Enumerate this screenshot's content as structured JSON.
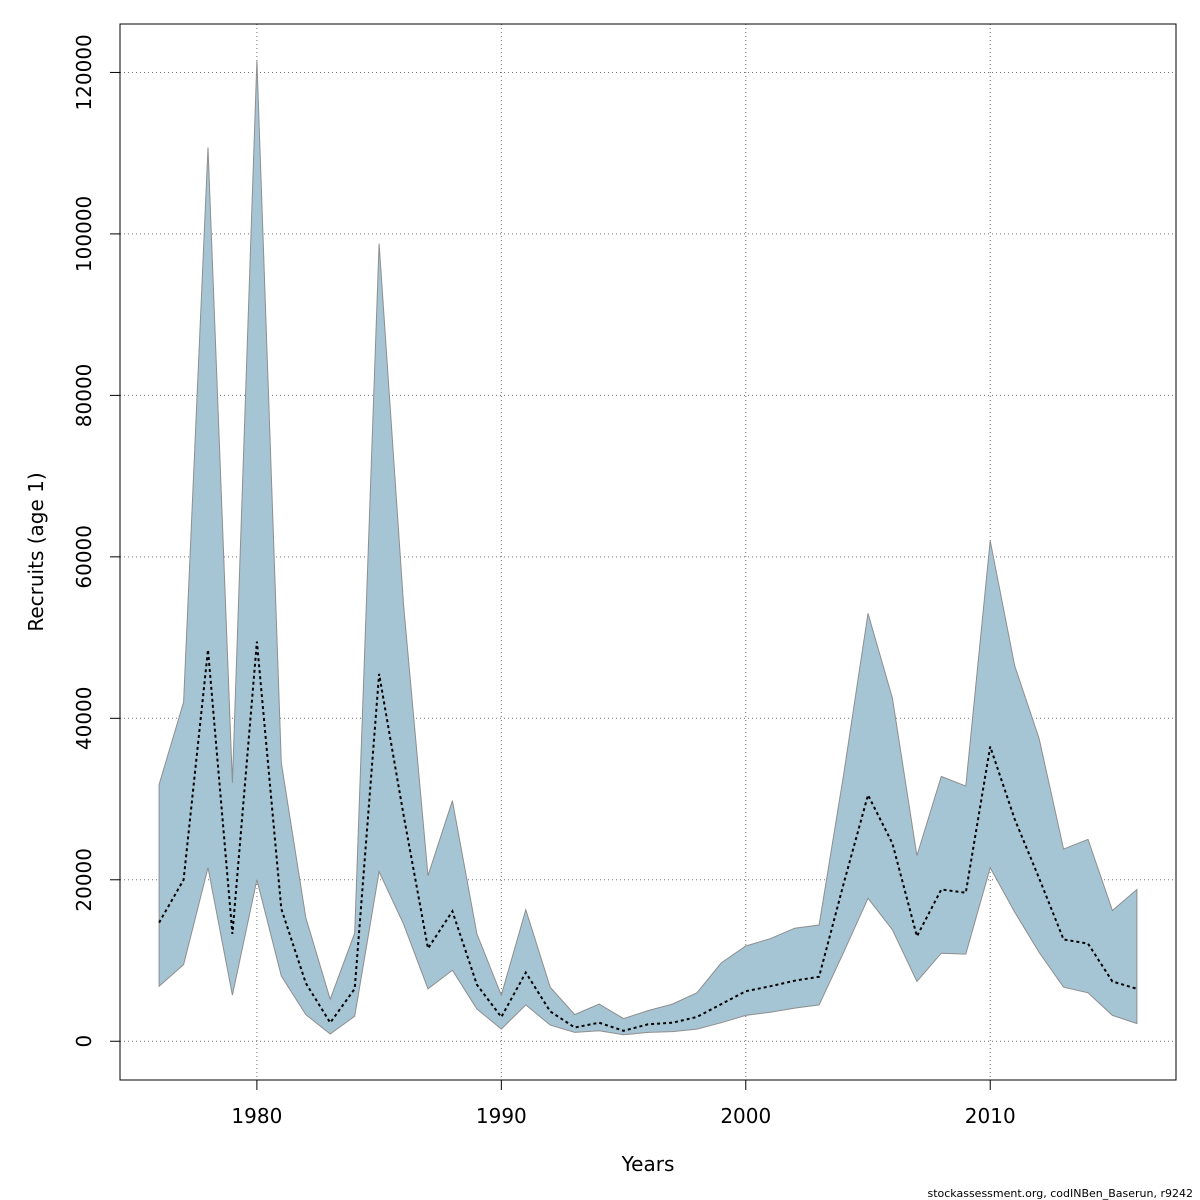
{
  "chart_data": {
    "type": "area",
    "xlabel": "Years",
    "ylabel": "Recruits (age 1)",
    "xlim": [
      1974.4,
      2017.6
    ],
    "ylim": [
      -4800,
      126000
    ],
    "x_ticks": [
      1980,
      1990,
      2000,
      2010
    ],
    "y_ticks": [
      0,
      20000,
      40000,
      60000,
      80000,
      100000,
      120000
    ],
    "grid": true,
    "colors": {
      "band_fill": "#a5c5d5",
      "band_stroke": "#8e8e8e",
      "line": "#000000",
      "grid": "#707070"
    },
    "x": [
      1976,
      1977,
      1978,
      1979,
      1980,
      1981,
      1982,
      1983,
      1984,
      1985,
      1986,
      1987,
      1988,
      1989,
      1990,
      1991,
      1992,
      1993,
      1994,
      1995,
      1996,
      1997,
      1998,
      1999,
      2000,
      2001,
      2002,
      2003,
      2004,
      2005,
      2006,
      2007,
      2008,
      2009,
      2010,
      2011,
      2012,
      2013,
      2014,
      2015,
      2016
    ],
    "series": [
      {
        "role": "estimate",
        "values": [
          14700,
          20000,
          48500,
          13300,
          49500,
          16400,
          7200,
          2300,
          6500,
          45500,
          28000,
          11500,
          16100,
          7000,
          3000,
          8500,
          3700,
          1700,
          2300,
          1300,
          2100,
          2300,
          3000,
          4600,
          6200,
          6800,
          7500,
          8000,
          19500,
          30500,
          24500,
          13000,
          18800,
          18400,
          36500,
          27500,
          20200,
          12600,
          12100,
          7400,
          6500
        ]
      },
      {
        "role": "lower",
        "values": [
          6800,
          9500,
          21500,
          5700,
          20000,
          8100,
          3300,
          900,
          3100,
          21000,
          14500,
          6500,
          8800,
          4000,
          1500,
          4500,
          2000,
          1100,
          1300,
          800,
          1100,
          1200,
          1500,
          2300,
          3200,
          3600,
          4100,
          4500,
          11000,
          17700,
          13800,
          7400,
          10900,
          10800,
          21500,
          16000,
          11000,
          6700,
          6000,
          3200,
          2200
        ]
      },
      {
        "role": "upper",
        "values": [
          31800,
          42000,
          110700,
          32000,
          121500,
          34500,
          15300,
          5200,
          13400,
          98800,
          54000,
          20500,
          29800,
          13300,
          5700,
          16300,
          6700,
          3300,
          4600,
          2800,
          3800,
          4600,
          6000,
          9700,
          11800,
          12700,
          14000,
          14400,
          33000,
          53000,
          42500,
          23000,
          32800,
          31600,
          62000,
          46500,
          37500,
          23800,
          25000,
          16200,
          18800
        ]
      }
    ]
  },
  "footer": {
    "credit": "stockassessment.org, codINBen_Baserun, r9242"
  }
}
